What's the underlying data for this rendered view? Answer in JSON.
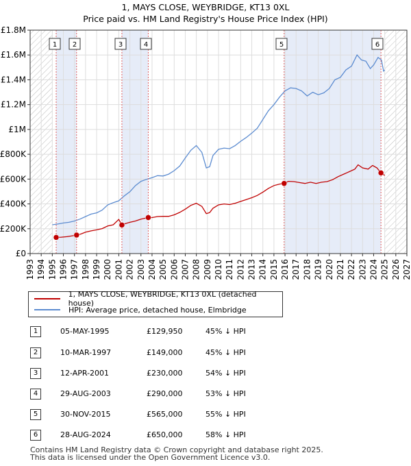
{
  "title": "1, MAYS CLOSE, WEYBRIDGE, KT13 0XL",
  "subtitle": "Price paid vs. HM Land Registry's House Price Index (HPI)",
  "chart_data": {
    "type": "line",
    "ylim": [
      0,
      1800000
    ],
    "xlim": [
      1993,
      2027
    ],
    "y_ticks": [
      {
        "value": 0,
        "label": "£0"
      },
      {
        "value": 200000,
        "label": "£200K"
      },
      {
        "value": 400000,
        "label": "£400K"
      },
      {
        "value": 600000,
        "label": "£600K"
      },
      {
        "value": 800000,
        "label": "£800K"
      },
      {
        "value": 1000000,
        "label": "£1M"
      },
      {
        "value": 1200000,
        "label": "£1.2M"
      },
      {
        "value": 1400000,
        "label": "£1.4M"
      },
      {
        "value": 1600000,
        "label": "£1.6M"
      },
      {
        "value": 1800000,
        "label": "£1.8M"
      }
    ],
    "x_ticks": [
      "1993",
      "1994",
      "1995",
      "1996",
      "1997",
      "1998",
      "1999",
      "2000",
      "2001",
      "2002",
      "2003",
      "2004",
      "2005",
      "2006",
      "2007",
      "2008",
      "2009",
      "2010",
      "2011",
      "2012",
      "2013",
      "2014",
      "2015",
      "2016",
      "2017",
      "2018",
      "2019",
      "2020",
      "2021",
      "2022",
      "2023",
      "2024",
      "2025",
      "2026",
      "2027"
    ],
    "shaded_ranges": [
      [
        1995.35,
        1997.19
      ],
      [
        2001.28,
        2003.66
      ],
      [
        2015.92,
        2024.66
      ]
    ],
    "hatched_ranges": [
      [
        1993,
        1995.0
      ],
      [
        2025.0,
        2027
      ]
    ],
    "series": [
      {
        "name": "HPI: Average price, detached house, Elmbridge",
        "color": "#5b8bd0",
        "points": [
          [
            1995.0,
            232000
          ],
          [
            1995.5,
            238000
          ],
          [
            1996.0,
            246000
          ],
          [
            1996.5,
            252000
          ],
          [
            1997.0,
            262000
          ],
          [
            1997.5,
            278000
          ],
          [
            1998.0,
            298000
          ],
          [
            1998.5,
            318000
          ],
          [
            1999.0,
            328000
          ],
          [
            1999.5,
            350000
          ],
          [
            2000.0,
            392000
          ],
          [
            2000.5,
            410000
          ],
          [
            2001.0,
            425000
          ],
          [
            2001.5,
            465000
          ],
          [
            2002.0,
            498000
          ],
          [
            2002.5,
            548000
          ],
          [
            2003.0,
            582000
          ],
          [
            2003.5,
            598000
          ],
          [
            2004.0,
            612000
          ],
          [
            2004.5,
            628000
          ],
          [
            2005.0,
            625000
          ],
          [
            2005.5,
            640000
          ],
          [
            2006.0,
            668000
          ],
          [
            2006.5,
            705000
          ],
          [
            2007.0,
            770000
          ],
          [
            2007.5,
            832000
          ],
          [
            2008.0,
            870000
          ],
          [
            2008.5,
            815000
          ],
          [
            2008.9,
            690000
          ],
          [
            2009.2,
            700000
          ],
          [
            2009.5,
            790000
          ],
          [
            2010.0,
            840000
          ],
          [
            2010.5,
            850000
          ],
          [
            2011.0,
            845000
          ],
          [
            2011.5,
            870000
          ],
          [
            2012.0,
            905000
          ],
          [
            2012.5,
            935000
          ],
          [
            2013.0,
            970000
          ],
          [
            2013.5,
            1010000
          ],
          [
            2014.0,
            1080000
          ],
          [
            2014.5,
            1150000
          ],
          [
            2015.0,
            1200000
          ],
          [
            2015.5,
            1260000
          ],
          [
            2016.0,
            1310000
          ],
          [
            2016.5,
            1335000
          ],
          [
            2017.0,
            1330000
          ],
          [
            2017.5,
            1310000
          ],
          [
            2018.0,
            1270000
          ],
          [
            2018.5,
            1300000
          ],
          [
            2019.0,
            1280000
          ],
          [
            2019.5,
            1295000
          ],
          [
            2020.0,
            1330000
          ],
          [
            2020.5,
            1400000
          ],
          [
            2021.0,
            1420000
          ],
          [
            2021.5,
            1480000
          ],
          [
            2022.0,
            1510000
          ],
          [
            2022.5,
            1600000
          ],
          [
            2022.9,
            1560000
          ],
          [
            2023.3,
            1550000
          ],
          [
            2023.7,
            1490000
          ],
          [
            2024.0,
            1520000
          ],
          [
            2024.4,
            1580000
          ],
          [
            2024.7,
            1560000
          ],
          [
            2024.9,
            1470000
          ],
          [
            2025.0,
            1480000
          ]
        ]
      },
      {
        "name": "1, MAYS CLOSE, WEYBRIDGE, KT13 0XL (detached house)",
        "color": "#c00000",
        "points": [
          [
            1995.35,
            129950
          ],
          [
            1995.8,
            132000
          ],
          [
            1996.3,
            136000
          ],
          [
            1996.8,
            143000
          ],
          [
            1997.19,
            149000
          ],
          [
            1997.6,
            158000
          ],
          [
            1998.0,
            172000
          ],
          [
            1998.5,
            183000
          ],
          [
            1999.0,
            191000
          ],
          [
            1999.5,
            201000
          ],
          [
            2000.0,
            222000
          ],
          [
            2000.5,
            232000
          ],
          [
            2001.0,
            275000
          ],
          [
            2001.28,
            230000
          ],
          [
            2001.6,
            242000
          ],
          [
            2002.0,
            252000
          ],
          [
            2002.5,
            262000
          ],
          [
            2003.0,
            278000
          ],
          [
            2003.66,
            290000
          ],
          [
            2004.0,
            290000
          ],
          [
            2004.5,
            298000
          ],
          [
            2005.0,
            300000
          ],
          [
            2005.5,
            300000
          ],
          [
            2006.0,
            312000
          ],
          [
            2006.5,
            332000
          ],
          [
            2007.0,
            358000
          ],
          [
            2007.5,
            388000
          ],
          [
            2008.0,
            405000
          ],
          [
            2008.5,
            380000
          ],
          [
            2008.9,
            322000
          ],
          [
            2009.2,
            330000
          ],
          [
            2009.5,
            365000
          ],
          [
            2010.0,
            392000
          ],
          [
            2010.5,
            400000
          ],
          [
            2011.0,
            395000
          ],
          [
            2011.5,
            405000
          ],
          [
            2012.0,
            420000
          ],
          [
            2012.5,
            435000
          ],
          [
            2013.0,
            450000
          ],
          [
            2013.5,
            468000
          ],
          [
            2014.0,
            495000
          ],
          [
            2014.5,
            525000
          ],
          [
            2015.0,
            548000
          ],
          [
            2015.5,
            560000
          ],
          [
            2015.92,
            565000
          ],
          [
            2016.3,
            582000
          ],
          [
            2016.8,
            580000
          ],
          [
            2017.3,
            572000
          ],
          [
            2017.8,
            565000
          ],
          [
            2018.3,
            575000
          ],
          [
            2018.8,
            565000
          ],
          [
            2019.3,
            575000
          ],
          [
            2019.8,
            580000
          ],
          [
            2020.3,
            595000
          ],
          [
            2020.8,
            620000
          ],
          [
            2021.3,
            640000
          ],
          [
            2021.8,
            660000
          ],
          [
            2022.3,
            680000
          ],
          [
            2022.6,
            715000
          ],
          [
            2023.0,
            690000
          ],
          [
            2023.5,
            680000
          ],
          [
            2023.9,
            710000
          ],
          [
            2024.3,
            690000
          ],
          [
            2024.66,
            650000
          ],
          [
            2025.0,
            630000
          ]
        ]
      }
    ],
    "sales": [
      {
        "label": "1",
        "year": 1995.35,
        "price": 129950
      },
      {
        "label": "2",
        "year": 1997.19,
        "price": 149000
      },
      {
        "label": "3",
        "year": 2001.28,
        "price": 230000
      },
      {
        "label": "4",
        "year": 2003.66,
        "price": 290000
      },
      {
        "label": "5",
        "year": 2015.92,
        "price": 565000
      },
      {
        "label": "6",
        "year": 2024.66,
        "price": 650000
      }
    ]
  },
  "legend": {
    "property": "1, MAYS CLOSE, WEYBRIDGE, KT13 0XL (detached house)",
    "hpi": "HPI: Average price, detached house, Elmbridge",
    "property_color": "#c00000",
    "hpi_color": "#5b8bd0"
  },
  "transactions": [
    {
      "num": "1",
      "date": "05-MAY-1995",
      "price": "£129,950",
      "hpi": "45% ↓ HPI"
    },
    {
      "num": "2",
      "date": "10-MAR-1997",
      "price": "£149,000",
      "hpi": "45% ↓ HPI"
    },
    {
      "num": "3",
      "date": "12-APR-2001",
      "price": "£230,000",
      "hpi": "54% ↓ HPI"
    },
    {
      "num": "4",
      "date": "29-AUG-2003",
      "price": "£290,000",
      "hpi": "53% ↓ HPI"
    },
    {
      "num": "5",
      "date": "30-NOV-2015",
      "price": "£565,000",
      "hpi": "55% ↓ HPI"
    },
    {
      "num": "6",
      "date": "28-AUG-2024",
      "price": "£650,000",
      "hpi": "58% ↓ HPI"
    }
  ],
  "footer": {
    "line1": "Contains HM Land Registry data © Crown copyright and database right 2025.",
    "line2": "This data is licensed under the Open Government Licence v3.0."
  }
}
